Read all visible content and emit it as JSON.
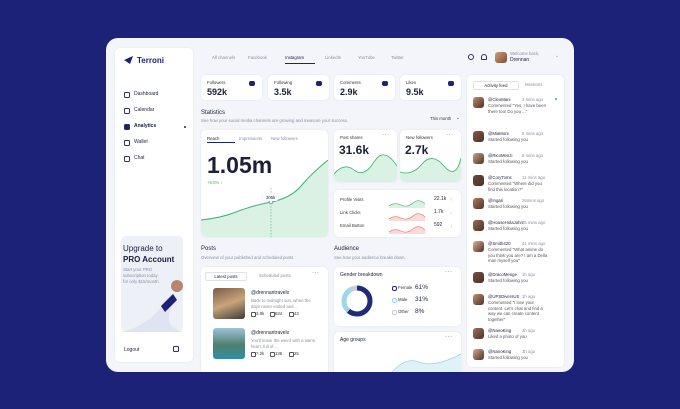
{
  "sidebar": {
    "brand": "Terroni",
    "nav": [
      "Dashboard",
      "Calendar",
      "Analytics",
      "Wallet",
      "Chat"
    ],
    "upgrade": {
      "title_line1": "Upgrade to",
      "title_line2": "PRO Account",
      "text": "Start your PRO subscription today for only $15/month"
    },
    "logout": "Logout"
  },
  "topbar": {
    "channels": [
      "All channels",
      "Facebook",
      "Instagram",
      "LinkedIn",
      "YouTube",
      "Twitter"
    ],
    "greeting": "Welcome back,",
    "user": "Drennan"
  },
  "stat_cards": [
    {
      "label": "Followers",
      "value": "592k"
    },
    {
      "label": "Following",
      "value": "3.5k"
    },
    {
      "label": "Comments",
      "value": "2.9k"
    },
    {
      "label": "Likes",
      "value": "9.5k"
    }
  ],
  "statistics": {
    "title": "Statistics",
    "subtitle": "See how your social media channels are growing and measure your success.",
    "period": "This month",
    "tabs": [
      "Reach",
      "Impressions",
      "New followers"
    ],
    "reach": "1.05m",
    "change": "+8.5% ↑",
    "tooltip": "305k",
    "post_shares": {
      "label": "Post shares",
      "value": "31.6k"
    },
    "new_followers": {
      "label": "New followers",
      "value": "2.7k"
    },
    "metrics": [
      {
        "label": "Profile Visits",
        "value": "22.1k"
      },
      {
        "label": "Link Clicks",
        "value": "1.7k"
      },
      {
        "label": "Email Button",
        "value": "592"
      }
    ]
  },
  "posts": {
    "title": "Posts",
    "subtitle": "Overview of your published and scheduled posts",
    "tabs": [
      "Latest posts",
      "Scheduled posts"
    ],
    "items": [
      {
        "handle": "@drennantravels",
        "text": "Back to midnight sun, when the days never ended and...",
        "likes": "3.8k",
        "comments": "834",
        "shares": "43"
      },
      {
        "handle": "@drennantravels",
        "text": "You'll leave the weird with a warm heart, full of...",
        "likes": "7.2k",
        "comments": "136",
        "shares": "25"
      }
    ]
  },
  "audience": {
    "title": "Audience",
    "subtitle": "See how your audience breaks down.",
    "gender": {
      "title": "Gender breakdown",
      "items": [
        {
          "label": "Female",
          "value": 61,
          "value_label": "61%",
          "color": "#1f2a7a"
        },
        {
          "label": "Male",
          "value": 31,
          "value_label": "31%",
          "color": "#9fd6e6"
        },
        {
          "label": "Other",
          "value": 8,
          "value_label": "8%",
          "color": "#c9ccd8"
        }
      ]
    },
    "age_title": "Age groups"
  },
  "activity": {
    "tabs": [
      "Activity feed",
      "Mentions"
    ],
    "items": [
      {
        "user": "@CleoMani",
        "time": "3 mins ago",
        "text": "Commented \"Yes, I have been there too! Do you ...\""
      },
      {
        "user": "@MiaMore",
        "time": "5 mins ago",
        "text": "Started following you"
      },
      {
        "user": "@RicoMenzi",
        "time": "8 mins ago",
        "text": "Started following you"
      },
      {
        "user": "@CoryToms",
        "time": "11 mins ago",
        "text": "Commented \"Where did you find this location?\""
      },
      {
        "user": "@Ingari",
        "time": "26mins ago",
        "text": "Started following you"
      },
      {
        "user": "@HouseHolaJohn",
        "time": "35 mins ago",
        "text": "Started following you"
      },
      {
        "user": "@Smith420",
        "time": "41 mins ago",
        "text": "Commented \"What anime do you think you are? I am a Della man myself you\""
      },
      {
        "user": "@DracoMenge",
        "time": "1h ago",
        "text": "Started following you"
      },
      {
        "user": "@UPSDiversUS",
        "time": "1h ago",
        "text": "Commented \"I love your content. Let's chat and find a way we can create content together\""
      },
      {
        "user": "@NanoKing",
        "time": "2h ago",
        "text": "Liked a photo of you"
      },
      {
        "user": "@NanoKing",
        "time": "3h ago",
        "text": "Started following you"
      }
    ]
  }
}
